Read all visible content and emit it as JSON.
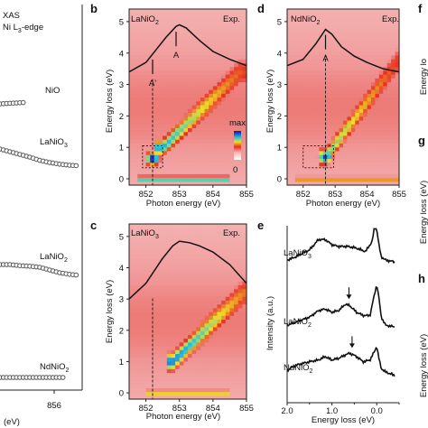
{
  "chart_data": [
    {
      "panel": "a",
      "type": "line",
      "title": "XAS",
      "subtitle_main": "Ni L",
      "subtitle_sub": "3",
      "subtitle_end": "-edge",
      "xlabel": "(eV)",
      "x_tick_labels": [
        "856"
      ],
      "series": [
        {
          "name": "NiO",
          "x": [
            849,
            850,
            851,
            852,
            853,
            854,
            855,
            856,
            857
          ],
          "y": [
            0.0,
            0.01,
            0.02,
            0.03,
            0.04,
            0.05,
            0.06,
            0.07,
            0.08
          ]
        },
        {
          "name": "LaNiO",
          "name_sub": "3",
          "x": [
            849,
            850,
            851,
            852,
            853,
            854,
            855,
            856,
            857
          ],
          "y": [
            0.05,
            0.0,
            -0.05,
            -0.1,
            -0.16,
            -0.2,
            -0.23,
            -0.25,
            -0.26
          ]
        },
        {
          "name": "LaNiO",
          "name_sub": "2",
          "x": [
            849,
            850,
            851,
            852,
            853,
            854,
            855,
            856,
            857
          ],
          "y": [
            0.05,
            0.05,
            0.03,
            0.02,
            0.0,
            -0.05,
            -0.1,
            -0.13,
            -0.15
          ]
        },
        {
          "name": "NdNiO",
          "name_sub": "2",
          "x": [
            849,
            850,
            851,
            852,
            853,
            854,
            855,
            856,
            857
          ],
          "y": [
            0.0,
            0.0,
            0.0,
            0.0,
            0.0,
            0.0,
            0.0,
            0.0,
            0.0
          ]
        }
      ]
    },
    {
      "panel": "b",
      "type": "heatmap",
      "label": "LaNiO",
      "label_sub": "2",
      "exp_label": "Exp.",
      "xlabel": "Photon energy (eV)",
      "ylabel": "Energy loss (eV)",
      "xlim": [
        851.5,
        855.0
      ],
      "ylim": [
        -0.2,
        5.4
      ],
      "x_ticks": [
        852,
        853,
        854,
        855
      ],
      "y_ticks": [
        0,
        1,
        2,
        3,
        4,
        5
      ],
      "xas_curve": {
        "x": [
          851.5,
          852.0,
          852.3,
          852.6,
          852.9,
          853.0,
          853.2,
          853.6,
          854.0,
          854.5,
          855.0
        ],
        "y": [
          3.4,
          3.7,
          4.1,
          4.5,
          4.85,
          4.9,
          4.8,
          4.4,
          4.05,
          3.8,
          3.6
        ]
      },
      "peak_labels": [
        {
          "text": "A'",
          "x": 852.2
        },
        {
          "text": "A",
          "x": 852.9
        }
      ],
      "dashed_line_x": 852.2,
      "dashed_box": {
        "x": [
          851.9,
          852.5
        ],
        "y": [
          0.35,
          1.05
        ]
      },
      "colorbar": {
        "top_label": "max",
        "bottom_label": "0"
      },
      "features": [
        {
          "name": "elastic",
          "y": 0.0,
          "x_range": [
            851.8,
            854.5
          ],
          "peak": 0.7
        },
        {
          "name": "A' peak",
          "x": 852.2,
          "y": 0.65,
          "peak": 0.95
        },
        {
          "name": "dispersive branch",
          "x_range": [
            852.5,
            854.8
          ],
          "y_range": [
            1.0,
            3.4
          ],
          "peak": 0.75
        }
      ]
    },
    {
      "panel": "c",
      "type": "heatmap",
      "label": "LaNiO",
      "label_sub": "3",
      "exp_label": "Exp.",
      "xlabel": "Photon energy (eV)",
      "ylabel": "Energy loss (eV)",
      "xlim": [
        851.5,
        855.0
      ],
      "ylim": [
        -0.2,
        5.4
      ],
      "x_ticks": [
        852,
        853,
        854,
        855
      ],
      "y_ticks": [
        0,
        1,
        2,
        3,
        4,
        5
      ],
      "xas_curve": {
        "x": [
          851.5,
          852.0,
          852.5,
          852.8,
          853.0,
          853.3,
          853.6,
          854.0,
          854.5,
          855.0
        ],
        "y": [
          3.0,
          3.5,
          4.3,
          4.7,
          4.85,
          4.8,
          4.7,
          4.5,
          4.1,
          3.5
        ]
      },
      "dashed_line_x": 852.2,
      "features": [
        {
          "name": "elastic",
          "y": 0.0,
          "x_range": [
            852.0,
            854.5
          ],
          "peak": 0.6
        },
        {
          "name": "dispersive branch",
          "x_range": [
            852.8,
            854.9
          ],
          "y_range": [
            1.0,
            3.2
          ],
          "peak": 0.8
        }
      ]
    },
    {
      "panel": "d",
      "type": "heatmap",
      "label": "NdNiO",
      "label_sub": "2",
      "exp_label": "Exp.",
      "xlabel": "Photon energy (eV)",
      "ylabel": "Energy loss (eV)",
      "xlim": [
        851.5,
        855.0
      ],
      "ylim": [
        -0.2,
        5.4
      ],
      "x_ticks": [
        852,
        853,
        854,
        855
      ],
      "y_ticks": [
        0,
        1,
        2,
        3,
        4,
        5
      ],
      "xas_curve": {
        "x": [
          851.5,
          852.0,
          852.4,
          852.7,
          852.9,
          853.2,
          853.6,
          854.0,
          854.5,
          855.0
        ],
        "y": [
          3.6,
          3.8,
          4.3,
          4.75,
          4.6,
          4.2,
          3.9,
          3.7,
          3.5,
          3.4
        ]
      },
      "peak_labels": [
        {
          "text": "A",
          "x": 852.7
        }
      ],
      "dashed_line_x": 852.7,
      "dashed_box": {
        "x": [
          852.0,
          852.95
        ],
        "y": [
          0.35,
          1.05
        ]
      },
      "features": [
        {
          "name": "elastic",
          "y": 0.0,
          "x_range": [
            851.8,
            855.0
          ],
          "peak": 0.55
        },
        {
          "name": "low-energy peak",
          "x": 852.7,
          "y": 0.7,
          "peak": 0.9
        },
        {
          "name": "dispersive branch",
          "x_range": [
            852.7,
            855.0
          ],
          "y_range": [
            0.7,
            3.8
          ],
          "peak": 0.7
        }
      ]
    },
    {
      "panel": "e",
      "type": "line",
      "xlabel": "Energy loss (eV)",
      "ylabel": "Intensity (a.u.)",
      "xlim": [
        2.0,
        -0.5
      ],
      "x_ticks": [
        2.0,
        1.0,
        0.0
      ],
      "series": [
        {
          "name": "LaNiO",
          "name_sub": "3",
          "x": [
            2.0,
            1.8,
            1.5,
            1.3,
            1.15,
            1.0,
            0.85,
            0.65,
            0.45,
            0.25,
            0.1,
            0.05,
            0.0,
            -0.05,
            -0.1,
            -0.2,
            -0.4
          ],
          "y": [
            0.05,
            0.15,
            0.35,
            0.65,
            0.65,
            0.5,
            0.45,
            0.45,
            0.4,
            0.3,
            0.6,
            1.0,
            0.95,
            0.5,
            0.15,
            0.05,
            0.0
          ]
        },
        {
          "name": "LaNiO",
          "name_sub": "2",
          "x": [
            2.0,
            1.8,
            1.5,
            1.3,
            1.15,
            1.0,
            0.85,
            0.7,
            0.6,
            0.45,
            0.3,
            0.15,
            0.05,
            0.0,
            -0.05,
            -0.1,
            -0.2,
            -0.4
          ],
          "y": [
            0.05,
            0.15,
            0.3,
            0.5,
            0.55,
            0.45,
            0.5,
            0.7,
            0.65,
            0.45,
            0.35,
            0.35,
            1.0,
            1.3,
            0.9,
            0.3,
            0.05,
            0.0
          ]
        },
        {
          "name": "NdNiO",
          "name_sub": "2",
          "x": [
            2.0,
            1.8,
            1.5,
            1.3,
            1.15,
            1.0,
            0.85,
            0.7,
            0.6,
            0.45,
            0.3,
            0.15,
            0.05,
            0.0,
            -0.05,
            -0.1,
            -0.2,
            -0.4
          ],
          "y": [
            0.05,
            0.2,
            0.3,
            0.35,
            0.45,
            0.35,
            0.4,
            0.5,
            0.55,
            0.45,
            0.3,
            0.35,
            0.6,
            0.75,
            0.4,
            0.1,
            0.0,
            -0.1
          ]
        }
      ],
      "arrows": [
        {
          "series": 1,
          "x": 0.62
        },
        {
          "series": 2,
          "x": 0.55
        }
      ]
    }
  ],
  "right_panels": [
    {
      "label": "f",
      "ylabel": "Energy lo"
    },
    {
      "label": "g",
      "ylabel": "Energy loss (eV)"
    },
    {
      "label": "h",
      "ylabel": "Energy loss (eV)"
    }
  ]
}
